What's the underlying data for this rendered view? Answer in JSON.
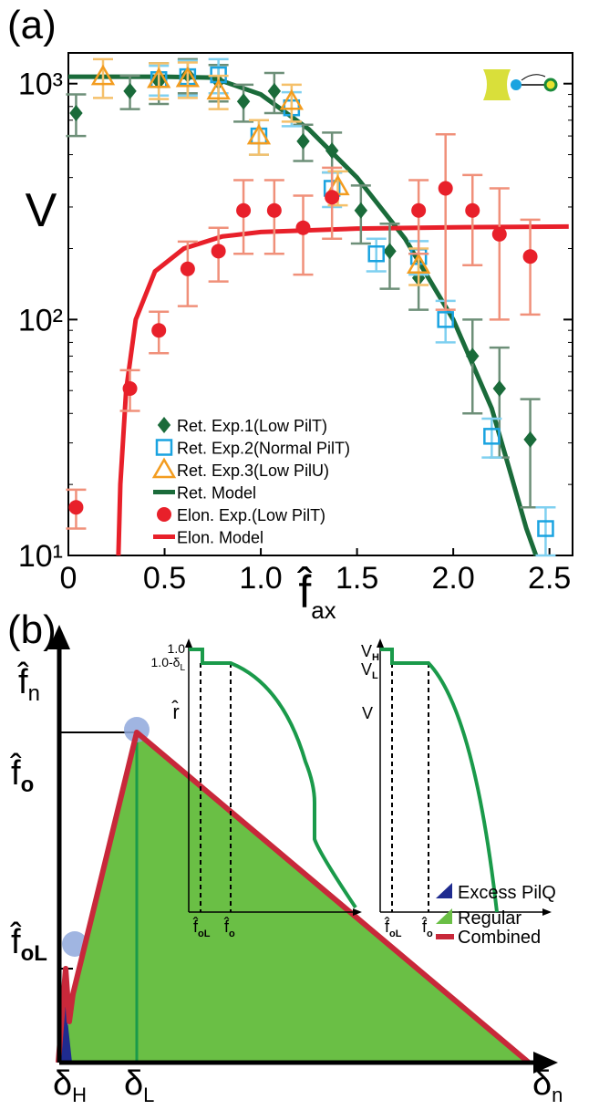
{
  "chart_data": {
    "type": "scatter",
    "panel_label": "(a)",
    "y_label": "V",
    "x_label": "f̂",
    "x_label_subscript": "ax",
    "xlim": [
      0,
      2.62
    ],
    "xticks": [
      0,
      0.5,
      {
        "value": 1,
        "label": "1.0"
      },
      1.5,
      {
        "value": 2,
        "label": "2.0"
      },
      2.5
    ],
    "ylim": [
      10,
      1350
    ],
    "y_scale": "log",
    "yticks": [
      {
        "value": 10,
        "label": "10¹"
      },
      {
        "value": 100,
        "label": "10²"
      },
      {
        "value": 1000,
        "label": "10³"
      }
    ],
    "legend": "lower left",
    "series": [
      {
        "name": "Ret. Exp.1(Low PilT)",
        "marker": "diamond",
        "color": "#1a6b3a",
        "error_color": "#6d8f78",
        "x": [
          0.04,
          0.32,
          0.47,
          0.62,
          0.78,
          0.91,
          1.07,
          1.22,
          1.37,
          1.52,
          1.67,
          1.82,
          2.1,
          2.24,
          2.4
        ],
        "values": [
          750,
          930,
          1020,
          1090,
          1020,
          840,
          930,
          570,
          520,
          290,
          195,
          150,
          70,
          51,
          31
        ],
        "errors": [
          150,
          150,
          200,
          180,
          180,
          150,
          180,
          100,
          100,
          80,
          60,
          40,
          30,
          25,
          15
        ]
      },
      {
        "name": "Ret. Exp.2(Normal PilT)",
        "marker": "square",
        "color": "#1aa3e0",
        "error_color": "#7fd0f0",
        "x": [
          0.47,
          0.62,
          0.78,
          0.99,
          1.16,
          1.37,
          1.6,
          1.82,
          1.96,
          2.2,
          2.48
        ],
        "values": [
          1040,
          1070,
          1090,
          600,
          790,
          360,
          190,
          185,
          100,
          32,
          13
        ],
        "errors": [
          150,
          180,
          180,
          100,
          130,
          60,
          30,
          30,
          20,
          6,
          3
        ]
      },
      {
        "name": "Ret. Exp.3(Low PilU)",
        "marker": "triangle",
        "color": "#f39c1f",
        "error_color": "#f5c06a",
        "x": [
          0.18,
          0.47,
          0.62,
          0.78,
          0.99,
          1.16,
          1.4,
          1.82
        ],
        "values": [
          1070,
          1040,
          1050,
          930,
          600,
          840,
          365,
          170
        ],
        "errors": [
          200,
          180,
          180,
          150,
          100,
          150,
          60,
          30
        ]
      },
      {
        "name": "Ret. Model",
        "marker": "line",
        "color": "#1a6b3a",
        "x": [
          0,
          0.5,
          0.75,
          1.0,
          1.25,
          1.5,
          1.75,
          2.0,
          2.2,
          2.3,
          2.38,
          2.43
        ],
        "values": [
          1070,
          1070,
          1060,
          900,
          640,
          400,
          220,
          100,
          42,
          22,
          13,
          10
        ]
      },
      {
        "name": "Elon. Exp.(Low PilT)",
        "marker": "circle",
        "color": "#e8202a",
        "error_color": "#f0907a",
        "x": [
          0.04,
          0.32,
          0.47,
          0.62,
          0.78,
          0.91,
          1.07,
          1.22,
          1.37,
          1.82,
          1.96,
          2.1,
          2.24,
          2.4
        ],
        "values": [
          16,
          51,
          90,
          164,
          195,
          290,
          290,
          245,
          330,
          290,
          360,
          290,
          230,
          185
        ],
        "errors": [
          3,
          10,
          18,
          50,
          50,
          100,
          100,
          90,
          110,
          100,
          250,
          120,
          130,
          80
        ]
      },
      {
        "name": "Elon. Model",
        "marker": "line",
        "color": "#e8202a",
        "x": [
          0.26,
          0.27,
          0.3,
          0.35,
          0.45,
          0.6,
          0.8,
          1.0,
          1.5,
          2.0,
          2.6
        ],
        "values": [
          10,
          20,
          50,
          100,
          160,
          200,
          225,
          235,
          243,
          246,
          248
        ]
      }
    ]
  },
  "diagram": {
    "panel_label": "(b)",
    "y_axis_label": {
      "base": "f̂",
      "sub": "n"
    },
    "y_marks": [
      {
        "base": "f̂",
        "sub": "o"
      },
      {
        "base": "f̂",
        "sub": "oL"
      }
    ],
    "x_marks": [
      {
        "base": "δ",
        "sub": "H"
      },
      {
        "base": "δ",
        "sub": "L"
      },
      {
        "base": "δ",
        "sub": "n"
      }
    ],
    "legend": [
      "Excess PilQ",
      "Regular",
      "Combined"
    ],
    "inset_r": {
      "y_top": "1.0",
      "y_mid": {
        "base": "1.0-δ",
        "sub": "L"
      },
      "y_label": "r̂",
      "x_marks": [
        {
          "base": "f̂",
          "sub": "oL"
        },
        {
          "base": "f̂",
          "sub": "o"
        }
      ]
    },
    "inset_v": {
      "y_top": {
        "base": "V",
        "sub": "H"
      },
      "y_mid": {
        "base": "V",
        "sub": "L"
      },
      "y_label": "V",
      "x_marks": [
        {
          "base": "f̂",
          "sub": "oL"
        },
        {
          "base": "f̂",
          "sub": "o"
        }
      ]
    }
  }
}
